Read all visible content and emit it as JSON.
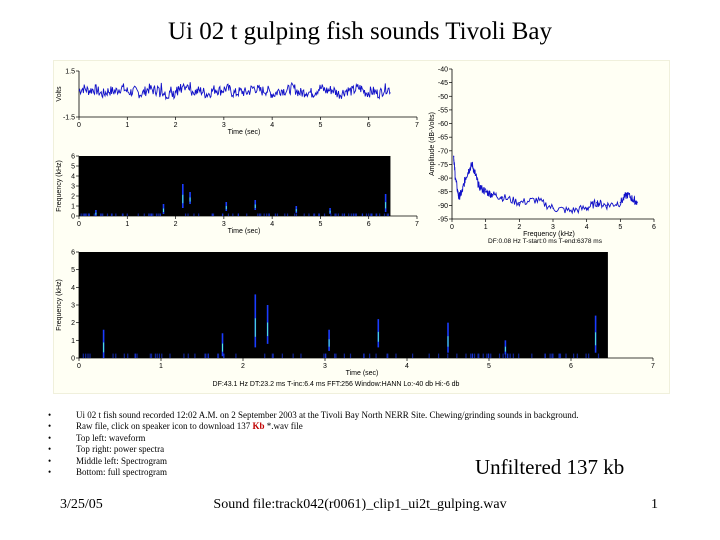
{
  "title": "Ui 02 t gulping fish sounds Tivoli Bay",
  "chart_data": [
    {
      "type": "line",
      "panel": "waveform",
      "xlabel": "Time (sec)",
      "ylabel": "Volts",
      "xlim": [
        0,
        7
      ],
      "ylim": [
        -1.5,
        1.5
      ],
      "xticks": [
        0,
        1,
        2,
        3,
        4,
        5,
        6,
        7
      ],
      "yticks": [
        1.5,
        -1.5
      ],
      "data_end": 6.45,
      "baseline": 0.2,
      "noise_amp": 0.35
    },
    {
      "type": "line",
      "panel": "power-spectrum",
      "xlabel": "Frequency (kHz)",
      "ylabel": "Amplitude (dB-Volts)",
      "xlim": [
        0,
        6
      ],
      "ylim": [
        -95,
        -40
      ],
      "xticks": [
        0,
        1,
        2,
        3,
        4,
        5,
        6
      ],
      "yticks": [
        -40,
        -45,
        -50,
        -55,
        -60,
        -65,
        -70,
        -75,
        -80,
        -85,
        -90,
        -95
      ],
      "x": [
        0.05,
        0.1,
        0.2,
        0.3,
        0.4,
        0.5,
        0.6,
        0.7,
        0.8,
        1.0,
        1.2,
        1.5,
        2.0,
        2.5,
        3.0,
        3.5,
        4.0,
        4.3,
        4.6,
        5.0,
        5.2,
        5.4,
        5.5
      ],
      "y": [
        -72,
        -80,
        -87,
        -85,
        -80,
        -77,
        -75,
        -79,
        -83,
        -85,
        -86,
        -87,
        -89,
        -88,
        -91,
        -92,
        -91,
        -89,
        -90,
        -89,
        -86,
        -88,
        -89
      ],
      "caption": "DF:0.08 Hz    T-start:0 ms    T-end:6378 ms"
    },
    {
      "type": "heatmap",
      "panel": "spectrogram-middle",
      "xlabel": "Time (sec)",
      "ylabel": "Frequency (kHz)",
      "xlim": [
        0,
        7
      ],
      "ylim": [
        0,
        6
      ],
      "xticks": [
        0,
        1,
        2,
        3,
        4,
        5,
        6,
        7
      ],
      "yticks": [
        0,
        1,
        2,
        3,
        4,
        5,
        6
      ],
      "data_end": 6.45,
      "events": [
        {
          "t": 0.35,
          "f": [
            0.0,
            0.6
          ]
        },
        {
          "t": 1.75,
          "f": [
            0.2,
            1.2
          ]
        },
        {
          "t": 2.15,
          "f": [
            0.8,
            3.2
          ]
        },
        {
          "t": 2.3,
          "f": [
            1.2,
            2.4
          ]
        },
        {
          "t": 3.05,
          "f": [
            0.5,
            1.4
          ]
        },
        {
          "t": 3.65,
          "f": [
            0.6,
            1.6
          ]
        },
        {
          "t": 4.5,
          "f": [
            0.3,
            1.0
          ]
        },
        {
          "t": 5.2,
          "f": [
            0.2,
            0.8
          ]
        },
        {
          "t": 6.35,
          "f": [
            0.4,
            2.2
          ]
        }
      ]
    },
    {
      "type": "heatmap",
      "panel": "spectrogram-bottom",
      "xlabel": "Time (sec)",
      "ylabel": "Frequency (kHz)",
      "xlim": [
        0,
        7
      ],
      "ylim": [
        0,
        6
      ],
      "xticks": [
        0,
        1,
        2,
        3,
        4,
        5,
        6,
        7
      ],
      "yticks": [
        0,
        1,
        2,
        3,
        4,
        5,
        6
      ],
      "data_end": 6.45,
      "events": [
        {
          "t": 0.3,
          "f": [
            0.0,
            1.6
          ]
        },
        {
          "t": 1.75,
          "f": [
            0.1,
            1.4
          ]
        },
        {
          "t": 2.15,
          "f": [
            0.6,
            3.6
          ]
        },
        {
          "t": 2.3,
          "f": [
            0.8,
            3.0
          ]
        },
        {
          "t": 3.05,
          "f": [
            0.4,
            1.6
          ]
        },
        {
          "t": 3.65,
          "f": [
            0.6,
            2.2
          ]
        },
        {
          "t": 4.5,
          "f": [
            0.3,
            2.0
          ]
        },
        {
          "t": 5.2,
          "f": [
            0.2,
            1.0
          ]
        },
        {
          "t": 6.3,
          "f": [
            0.3,
            2.4
          ]
        }
      ],
      "caption": "DF:43.1 Hz    DT:23.2 ms    T-inc:6.4 ms    FFT:256    Window:HANN    Lo:-40 db    Hi:-6 db"
    }
  ],
  "bullets": [
    {
      "text": "Ui 02 t fish sound recorded  12:02 A.M. on 2 September 2003 at the Tivoli Bay North NERR Site.  Chewing/grinding sounds in background."
    },
    {
      "text_before": "Raw file, click on speaker icon to download 137 ",
      "highlight": "Kb",
      "text_after": " *.wav file"
    },
    {
      "text": "Top left: waveform"
    },
    {
      "text": "Top right: power spectra"
    },
    {
      "text": "Middle left: Spectrogram"
    },
    {
      "text": "Bottom: full spectrogram"
    }
  ],
  "unfiltered_label": "Unfiltered 137 kb",
  "footer": {
    "date": "3/25/05",
    "sound_file": "Sound file:track042(r0061)_clip1_ui2t_gulping.wav",
    "page_number": "1"
  },
  "colors": {
    "trace": "#1010c8",
    "spectrogram_bg": "#000000",
    "event_low": "#1a3cff",
    "event_high": "#4ff0d8",
    "highlight": "#c00000"
  }
}
